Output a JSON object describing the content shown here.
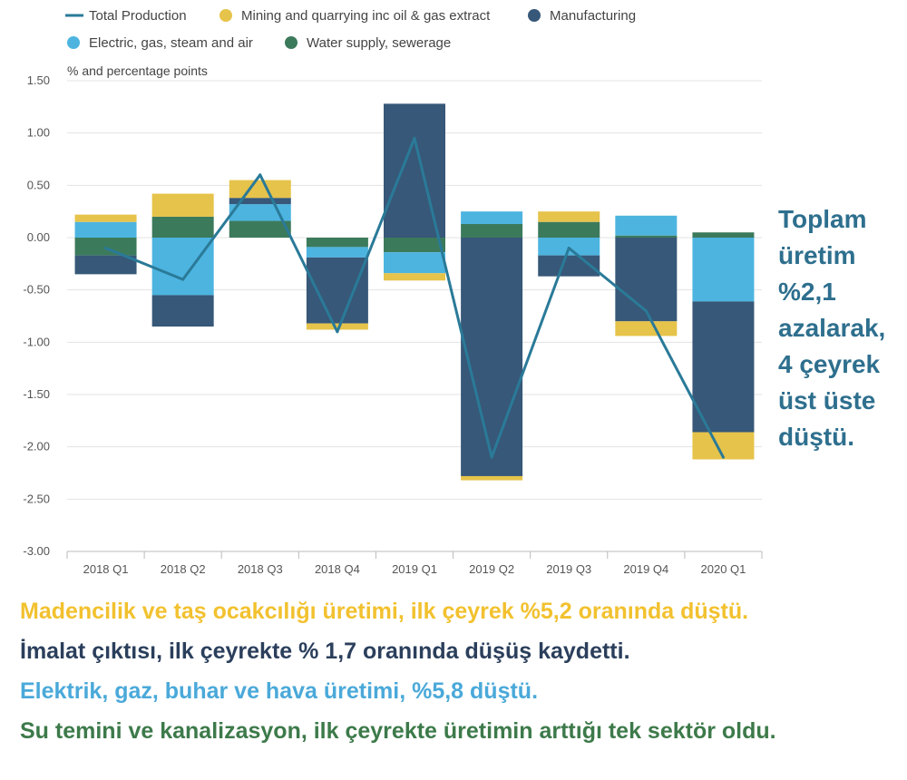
{
  "chart_data": {
    "type": "bar",
    "stacked": true,
    "ylabel": "% and percentage points",
    "ylim": [
      -3.0,
      1.5
    ],
    "yticks": [
      "1.50",
      "1.00",
      "0.50",
      "0.00",
      "-0.50",
      "-1.00",
      "-1.50",
      "-2.00",
      "-2.50",
      "-3.00"
    ],
    "categories": [
      "2018 Q1",
      "2018 Q2",
      "2018 Q3",
      "2018 Q4",
      "2019 Q1",
      "2019 Q2",
      "2019 Q3",
      "2019 Q4",
      "2020 Q1"
    ],
    "grid": true,
    "legend_position": "top",
    "series": [
      {
        "name": "Mining and quarrying inc oil & gas extract",
        "kind": "bar",
        "color": "#e6c34a",
        "values": [
          0.07,
          0.22,
          0.17,
          -0.06,
          -0.07,
          -0.04,
          0.1,
          -0.14,
          -0.26
        ]
      },
      {
        "name": "Manufacturing",
        "kind": "bar",
        "color": "#375878",
        "values": [
          -0.18,
          -0.3,
          0.06,
          -0.63,
          1.28,
          -2.28,
          -0.2,
          -0.8,
          -1.25
        ]
      },
      {
        "name": "Electric, gas, steam and air",
        "kind": "bar",
        "color": "#4db4e0",
        "values": [
          0.15,
          -0.55,
          0.16,
          -0.1,
          -0.2,
          0.12,
          -0.17,
          0.19,
          -0.61
        ]
      },
      {
        "name": "Water supply, sewerage",
        "kind": "bar",
        "color": "#3c7a5c",
        "values": [
          -0.17,
          0.2,
          0.16,
          -0.09,
          -0.14,
          0.13,
          0.15,
          0.02,
          0.05
        ]
      },
      {
        "name": "Total Production",
        "kind": "line",
        "color": "#2a7a98",
        "values": [
          -0.1,
          -0.4,
          0.6,
          -0.9,
          0.95,
          -2.1,
          -0.1,
          -0.7,
          -2.1
        ]
      }
    ]
  },
  "legend": [
    {
      "label": "Total Production",
      "marker": "line",
      "color": "#2a7a98"
    },
    {
      "label": "Mining and quarrying inc oil & gas extract",
      "marker": "dot",
      "color": "#e6c34a"
    },
    {
      "label": "Manufacturing",
      "marker": "dot",
      "color": "#375878"
    },
    {
      "label": "Electric, gas, steam and air",
      "marker": "dot",
      "color": "#4db4e0"
    },
    {
      "label": "Water supply, sewerage",
      "marker": "dot",
      "color": "#3c7a5c"
    }
  ],
  "side_note": {
    "lines": [
      "Toplam",
      "üretim",
      "%2,1",
      "azalarak,",
      "4 çeyrek",
      "üst üste",
      "düştü."
    ],
    "color": "#2e6f8e"
  },
  "notes": {
    "mining": {
      "text": "Madencilik ve taş ocakcılığı üretimi, ilk çeyrek %5,2 oranında düştü.",
      "color": "#f2c12e"
    },
    "manufacturing": {
      "text": "İmalat çıktısı, ilk çeyrekte % 1,7 oranında düşüş kaydetti.",
      "color": "#2b3f5c"
    },
    "electric": {
      "text": "Elektrik, gaz, buhar ve hava üretimi, %5,8 düştü.",
      "color": "#4aa9d9"
    },
    "water": {
      "text": "Su temini ve kanalizasyon, ilk çeyrekte üretimin arttığı tek sektör oldu.",
      "color": "#3d7a4a"
    }
  }
}
